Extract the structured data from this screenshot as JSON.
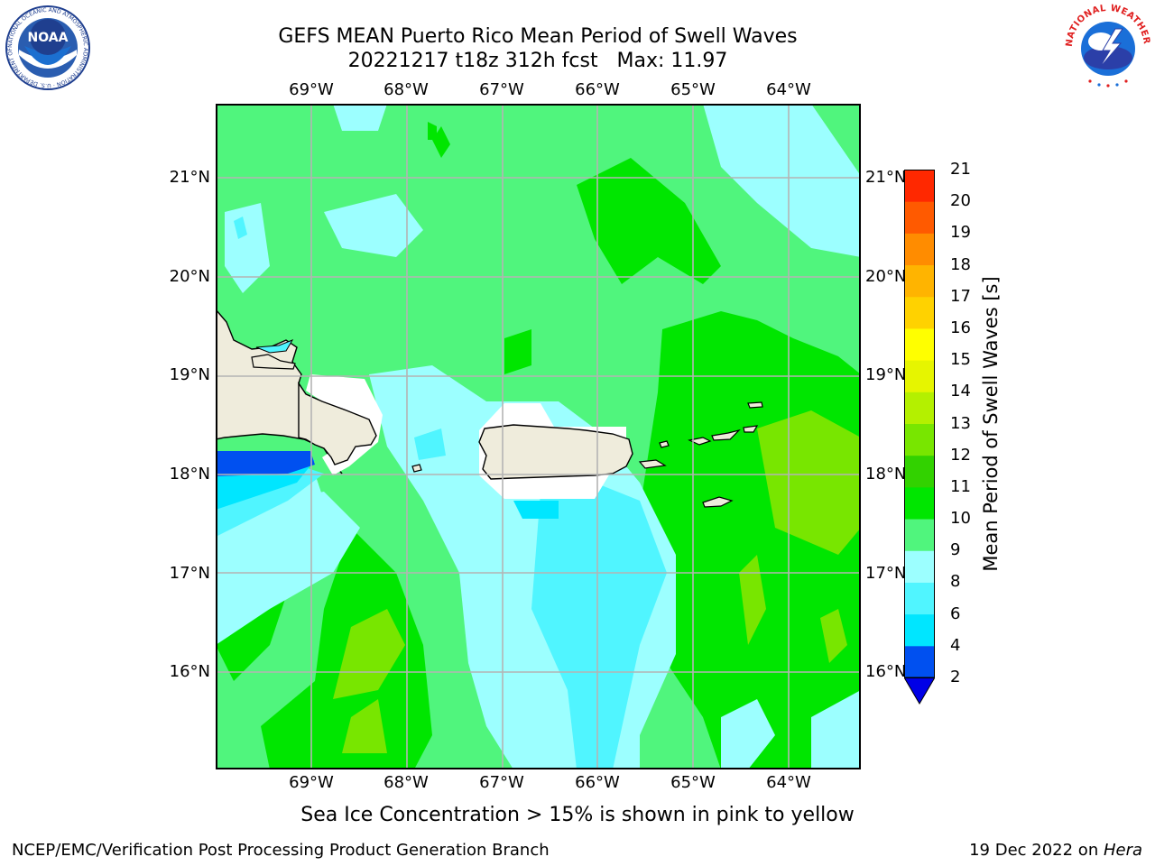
{
  "title": {
    "line1": "GEFS MEAN Puerto Rico Mean Period of Swell Waves",
    "line2": "20221217 t18z 312h fcst   Max: 11.97"
  },
  "map": {
    "lon_labels": [
      "69°W",
      "68°W",
      "67°W",
      "66°W",
      "65°W",
      "64°W"
    ],
    "lat_labels": [
      "21°N",
      "20°N",
      "19°N",
      "18°N",
      "17°N",
      "16°N"
    ],
    "lon_range": [
      -70.0,
      -63.25
    ],
    "lat_range": [
      15.0,
      21.75
    ],
    "grid": true,
    "land_color": "#efecdc",
    "islands": [
      "Hispaniola",
      "Puerto Rico",
      "Virgin Islands"
    ]
  },
  "colorbar": {
    "label": "Mean Period of Swell Waves [s]",
    "ticks": [
      "2",
      "4",
      "6",
      "8",
      "9",
      "10",
      "11",
      "12",
      "13",
      "14",
      "15",
      "16",
      "17",
      "18",
      "19",
      "20",
      "21"
    ],
    "colors": [
      "#0050f0",
      "#00e6ff",
      "#50f5ff",
      "#9cffff",
      "#50f57d",
      "#00e600",
      "#32d200",
      "#78e600",
      "#b4f000",
      "#e6f500",
      "#ffff00",
      "#ffd200",
      "#ffb400",
      "#ff8c00",
      "#ff5a00",
      "#ff2800"
    ],
    "extend_color": "#0000e6"
  },
  "subtitle": "Sea Ice Concentration > 15% is shown in pink to yellow",
  "credit_left": "NCEP/EMC/Verification Post Processing Product Generation Branch",
  "credit_right_date": "19 Dec 2022 on ",
  "credit_right_host": "Hera",
  "logos": {
    "noaa_text": "NOAA",
    "noaa_ring": "NATIONAL OCEANIC AND ATMOSPHERIC ADMINISTRATION · U.S. DEPARTMENT OF COMMERCE",
    "nws_ring": "NATIONAL WEATHER SERVICE"
  }
}
